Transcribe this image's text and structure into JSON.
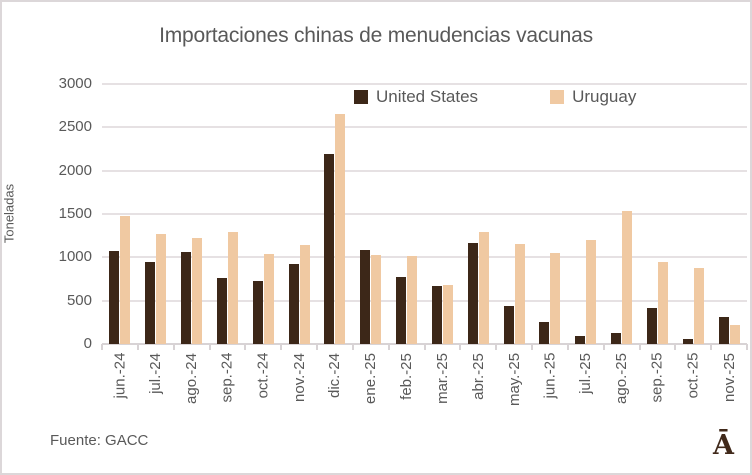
{
  "footer": {
    "source": "Fuente: GACC",
    "logo": "Ā"
  },
  "colors": {
    "united_states_bar": "#3c2718",
    "uruguay_bar": "#f0c9a2",
    "text": "#595959",
    "gridline": "#e6e1e3",
    "axis": "#d8d3d5",
    "logo": "#40291a",
    "background": "#ffffff"
  },
  "chart_data": {
    "type": "bar",
    "title": "Importaciones chinas de menudencias vacunas",
    "xlabel": "",
    "ylabel": "Toneladas",
    "ylim": [
      0,
      3000
    ],
    "yticks": [
      0,
      500,
      1000,
      1500,
      2000,
      2500,
      3000
    ],
    "grid": true,
    "legend_position": "top-inside",
    "categories": [
      "jun.-24",
      "jul.-24",
      "ago.-24",
      "sep.-24",
      "oct.-24",
      "nov.-24",
      "dic.-24",
      "ene.-25",
      "feb.-25",
      "mar.-25",
      "abr.-25",
      "may.-25",
      "jun.-25",
      "jul.-25",
      "ago.-25",
      "sep.-25",
      "oct.-25",
      "nov.-25"
    ],
    "series": [
      {
        "name": "United States",
        "color": "#3c2718",
        "values": [
          1070,
          950,
          1060,
          760,
          730,
          920,
          2190,
          1090,
          770,
          670,
          1160,
          440,
          250,
          90,
          130,
          410,
          55,
          315
        ]
      },
      {
        "name": "Uruguay",
        "color": "#f0c9a2",
        "values": [
          1480,
          1270,
          1220,
          1290,
          1040,
          1140,
          2650,
          1030,
          1020,
          680,
          1290,
          1150,
          1050,
          1200,
          1540,
          950,
          880,
          215
        ]
      }
    ]
  }
}
